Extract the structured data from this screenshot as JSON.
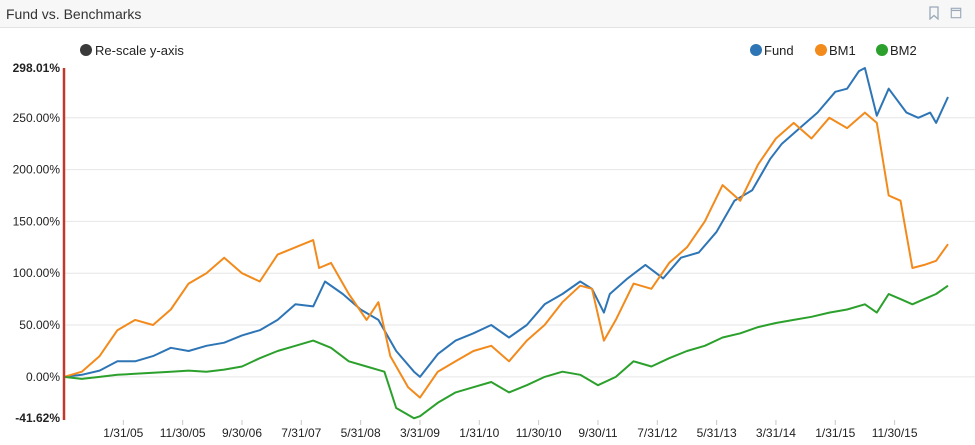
{
  "panel": {
    "title": "Fund vs. Benchmarks"
  },
  "controls": {
    "rescale_label": "Re-scale y-axis",
    "rescale_color": "#3a3a3a"
  },
  "chart_data": {
    "type": "line",
    "yaxis": {
      "max_label": "298.01%",
      "min_label": "-41.62%",
      "range": [
        -41.62,
        298.01
      ],
      "ticks": [
        {
          "value": 250,
          "label": "250.00%"
        },
        {
          "value": 200,
          "label": "200.00%"
        },
        {
          "value": 150,
          "label": "150.00%"
        },
        {
          "value": 100,
          "label": "100.00%"
        },
        {
          "value": 50,
          "label": "50.00%"
        },
        {
          "value": 0,
          "label": "0.00%"
        }
      ]
    },
    "xaxis": {
      "range": [
        "2004-03",
        "2016-08"
      ],
      "ticks": [
        {
          "date": "2005-01",
          "label": "1/31/05"
        },
        {
          "date": "2005-11",
          "label": "11/30/05"
        },
        {
          "date": "2006-09",
          "label": "9/30/06"
        },
        {
          "date": "2007-07",
          "label": "7/31/07"
        },
        {
          "date": "2008-05",
          "label": "5/31/08"
        },
        {
          "date": "2009-03",
          "label": "3/31/09"
        },
        {
          "date": "2010-01",
          "label": "1/31/10"
        },
        {
          "date": "2010-11",
          "label": "11/30/10"
        },
        {
          "date": "2011-09",
          "label": "9/30/11"
        },
        {
          "date": "2012-07",
          "label": "7/31/12"
        },
        {
          "date": "2013-05",
          "label": "5/31/13"
        },
        {
          "date": "2014-03",
          "label": "3/31/14"
        },
        {
          "date": "2015-01",
          "label": "1/31/15"
        },
        {
          "date": "2015-11",
          "label": "11/30/15"
        }
      ]
    },
    "legend_position": "top-right",
    "grid": "horizontal",
    "series": [
      {
        "name": "Fund",
        "color": "#2e75b6",
        "points": [
          [
            "2004-03",
            0
          ],
          [
            "2004-06",
            2
          ],
          [
            "2004-09",
            6
          ],
          [
            "2004-12",
            15
          ],
          [
            "2005-03",
            15
          ],
          [
            "2005-06",
            20
          ],
          [
            "2005-09",
            28
          ],
          [
            "2005-12",
            25
          ],
          [
            "2006-03",
            30
          ],
          [
            "2006-06",
            33
          ],
          [
            "2006-09",
            40
          ],
          [
            "2006-12",
            45
          ],
          [
            "2007-03",
            55
          ],
          [
            "2007-06",
            70
          ],
          [
            "2007-09",
            68
          ],
          [
            "2007-11",
            92
          ],
          [
            "2008-02",
            80
          ],
          [
            "2008-05",
            65
          ],
          [
            "2008-08",
            55
          ],
          [
            "2008-11",
            25
          ],
          [
            "2009-02",
            5
          ],
          [
            "2009-03",
            0
          ],
          [
            "2009-06",
            22
          ],
          [
            "2009-09",
            35
          ],
          [
            "2009-12",
            42
          ],
          [
            "2010-03",
            50
          ],
          [
            "2010-06",
            38
          ],
          [
            "2010-09",
            50
          ],
          [
            "2010-12",
            70
          ],
          [
            "2011-03",
            80
          ],
          [
            "2011-06",
            92
          ],
          [
            "2011-08",
            85
          ],
          [
            "2011-10",
            62
          ],
          [
            "2011-11",
            80
          ],
          [
            "2012-02",
            95
          ],
          [
            "2012-05",
            108
          ],
          [
            "2012-08",
            95
          ],
          [
            "2012-11",
            115
          ],
          [
            "2013-02",
            120
          ],
          [
            "2013-05",
            140
          ],
          [
            "2013-08",
            170
          ],
          [
            "2013-11",
            180
          ],
          [
            "2014-02",
            210
          ],
          [
            "2014-04",
            225
          ],
          [
            "2014-07",
            240
          ],
          [
            "2014-10",
            255
          ],
          [
            "2015-01",
            275
          ],
          [
            "2015-03",
            278
          ],
          [
            "2015-05",
            295
          ],
          [
            "2015-06",
            298
          ],
          [
            "2015-08",
            252
          ],
          [
            "2015-10",
            278
          ],
          [
            "2016-01",
            255
          ],
          [
            "2016-03",
            250
          ],
          [
            "2016-05",
            255
          ],
          [
            "2016-06",
            245
          ],
          [
            "2016-08",
            270
          ]
        ]
      },
      {
        "name": "BM1",
        "color": "#f28a1c",
        "points": [
          [
            "2004-03",
            0
          ],
          [
            "2004-06",
            5
          ],
          [
            "2004-09",
            20
          ],
          [
            "2004-12",
            45
          ],
          [
            "2005-03",
            55
          ],
          [
            "2005-06",
            50
          ],
          [
            "2005-09",
            65
          ],
          [
            "2005-12",
            90
          ],
          [
            "2006-03",
            100
          ],
          [
            "2006-06",
            115
          ],
          [
            "2006-09",
            100
          ],
          [
            "2006-12",
            92
          ],
          [
            "2007-03",
            118
          ],
          [
            "2007-06",
            125
          ],
          [
            "2007-09",
            132
          ],
          [
            "2007-10",
            105
          ],
          [
            "2007-12",
            110
          ],
          [
            "2008-03",
            80
          ],
          [
            "2008-06",
            55
          ],
          [
            "2008-08",
            72
          ],
          [
            "2008-10",
            20
          ],
          [
            "2009-01",
            -10
          ],
          [
            "2009-03",
            -20
          ],
          [
            "2009-06",
            5
          ],
          [
            "2009-09",
            15
          ],
          [
            "2009-12",
            25
          ],
          [
            "2010-03",
            30
          ],
          [
            "2010-06",
            15
          ],
          [
            "2010-09",
            35
          ],
          [
            "2010-12",
            50
          ],
          [
            "2011-03",
            72
          ],
          [
            "2011-06",
            88
          ],
          [
            "2011-08",
            85
          ],
          [
            "2011-10",
            35
          ],
          [
            "2011-12",
            55
          ],
          [
            "2012-03",
            90
          ],
          [
            "2012-06",
            85
          ],
          [
            "2012-09",
            110
          ],
          [
            "2012-12",
            125
          ],
          [
            "2013-03",
            150
          ],
          [
            "2013-06",
            185
          ],
          [
            "2013-09",
            170
          ],
          [
            "2013-12",
            205
          ],
          [
            "2014-03",
            230
          ],
          [
            "2014-06",
            245
          ],
          [
            "2014-09",
            230
          ],
          [
            "2014-12",
            250
          ],
          [
            "2015-03",
            240
          ],
          [
            "2015-06",
            255
          ],
          [
            "2015-08",
            245
          ],
          [
            "2015-10",
            175
          ],
          [
            "2015-12",
            170
          ],
          [
            "2016-02",
            105
          ],
          [
            "2016-04",
            108
          ],
          [
            "2016-06",
            112
          ],
          [
            "2016-08",
            128
          ]
        ]
      },
      {
        "name": "BM2",
        "color": "#2ca02c",
        "points": [
          [
            "2004-03",
            0
          ],
          [
            "2004-06",
            -2
          ],
          [
            "2004-09",
            0
          ],
          [
            "2004-12",
            2
          ],
          [
            "2005-03",
            3
          ],
          [
            "2005-06",
            4
          ],
          [
            "2005-09",
            5
          ],
          [
            "2005-12",
            6
          ],
          [
            "2006-03",
            5
          ],
          [
            "2006-06",
            7
          ],
          [
            "2006-09",
            10
          ],
          [
            "2006-12",
            18
          ],
          [
            "2007-03",
            25
          ],
          [
            "2007-06",
            30
          ],
          [
            "2007-09",
            35
          ],
          [
            "2007-12",
            28
          ],
          [
            "2008-03",
            15
          ],
          [
            "2008-06",
            10
          ],
          [
            "2008-09",
            5
          ],
          [
            "2008-11",
            -30
          ],
          [
            "2009-02",
            -40
          ],
          [
            "2009-03",
            -38
          ],
          [
            "2009-06",
            -25
          ],
          [
            "2009-09",
            -15
          ],
          [
            "2009-12",
            -10
          ],
          [
            "2010-03",
            -5
          ],
          [
            "2010-06",
            -15
          ],
          [
            "2010-09",
            -8
          ],
          [
            "2010-12",
            0
          ],
          [
            "2011-03",
            5
          ],
          [
            "2011-06",
            2
          ],
          [
            "2011-09",
            -8
          ],
          [
            "2011-12",
            0
          ],
          [
            "2012-03",
            15
          ],
          [
            "2012-06",
            10
          ],
          [
            "2012-09",
            18
          ],
          [
            "2012-12",
            25
          ],
          [
            "2013-03",
            30
          ],
          [
            "2013-06",
            38
          ],
          [
            "2013-09",
            42
          ],
          [
            "2013-12",
            48
          ],
          [
            "2014-03",
            52
          ],
          [
            "2014-06",
            55
          ],
          [
            "2014-09",
            58
          ],
          [
            "2014-12",
            62
          ],
          [
            "2015-03",
            65
          ],
          [
            "2015-06",
            70
          ],
          [
            "2015-08",
            62
          ],
          [
            "2015-10",
            80
          ],
          [
            "2015-12",
            75
          ],
          [
            "2016-02",
            70
          ],
          [
            "2016-04",
            75
          ],
          [
            "2016-06",
            80
          ],
          [
            "2016-08",
            88
          ]
        ]
      }
    ]
  }
}
